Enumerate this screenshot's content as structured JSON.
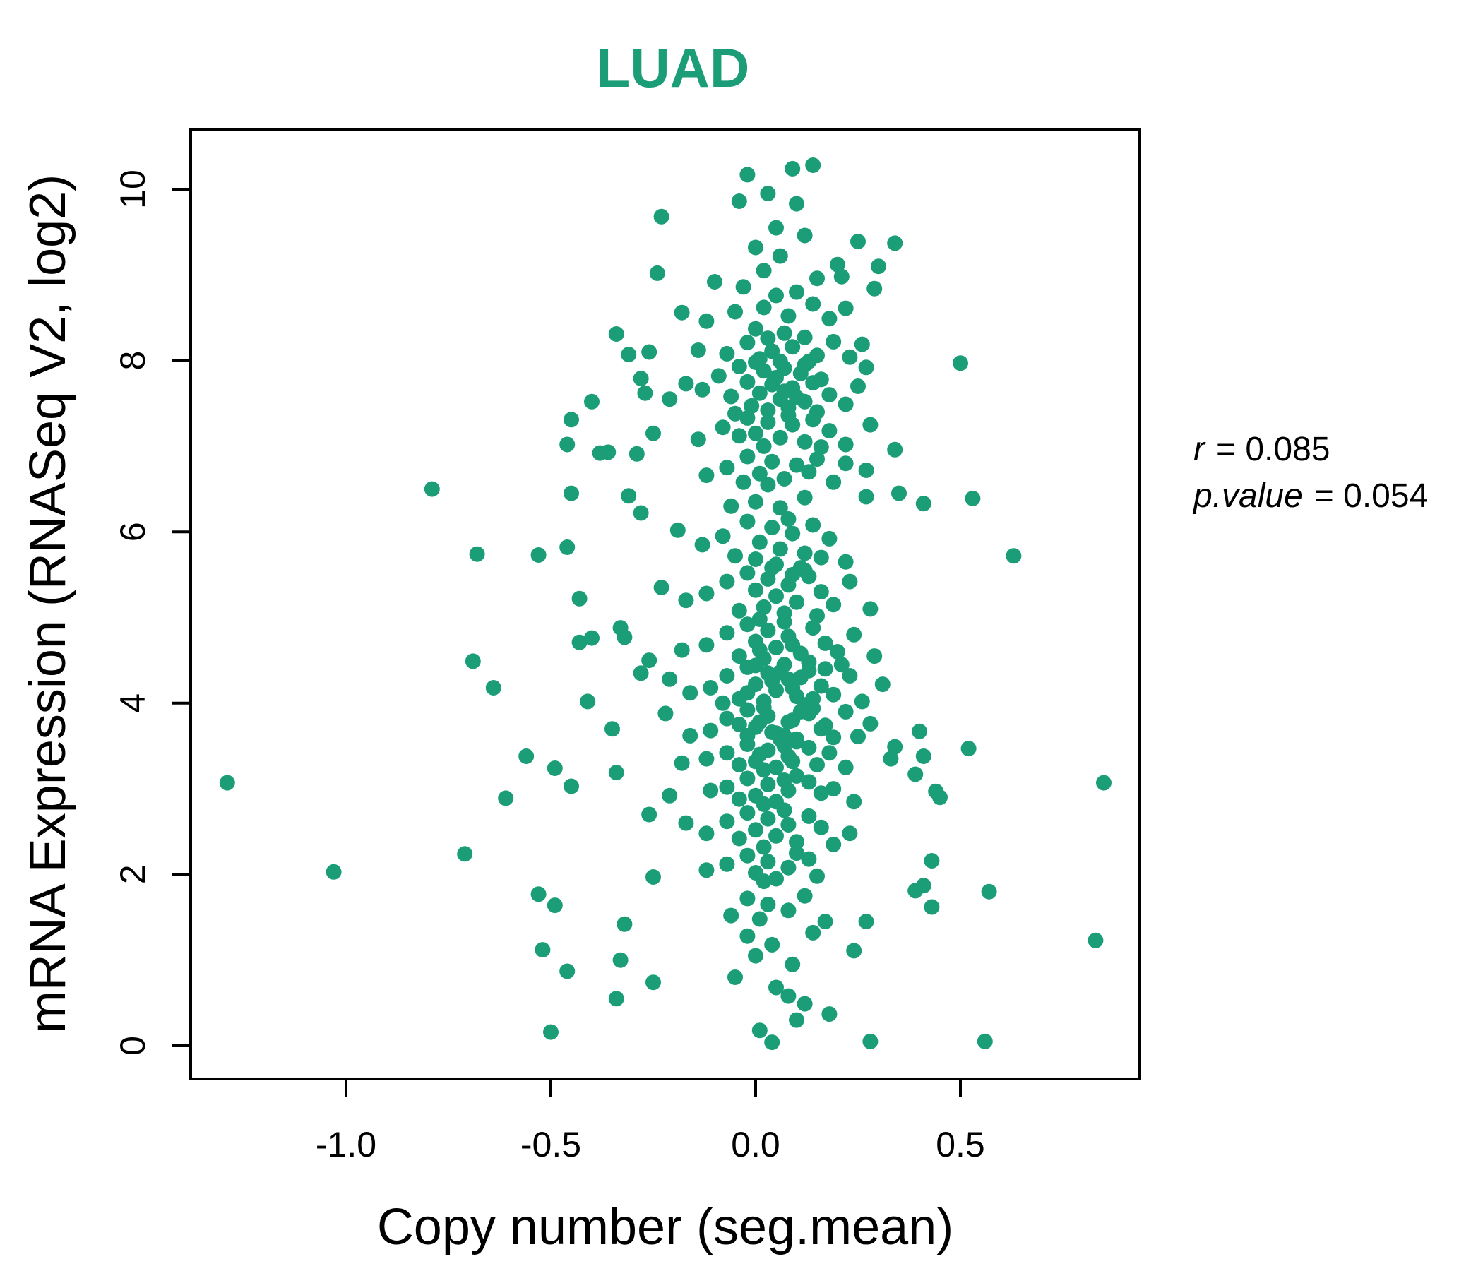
{
  "colors": {
    "accent": "#1B9E77",
    "point": "#1B9E77",
    "axis": "#000000"
  },
  "annotation": {
    "r_symbol": "r",
    "r_rest": "= 0.085",
    "p_symbol": "p.value",
    "p_rest": "= 0.054"
  },
  "chart_data": {
    "type": "scatter",
    "title": "LUAD",
    "xlabel": "Copy number (seg.mean)",
    "ylabel": "mRNA Expression (RNASeq V2, log2)",
    "x_ticks": [
      -1.0,
      -0.5,
      0.0,
      0.5
    ],
    "x_tick_labels": [
      "-1.0",
      "-0.5",
      "0.0",
      "0.5"
    ],
    "y_ticks": [
      0,
      2,
      4,
      6,
      8,
      10
    ],
    "y_tick_labels": [
      "0",
      "2",
      "4",
      "6",
      "8",
      "10"
    ],
    "xlim": [
      -1.38,
      0.94
    ],
    "ylim": [
      -0.39,
      10.7
    ],
    "grid": false,
    "legend": "none",
    "stats": {
      "r": 0.085,
      "p_value": 0.054
    },
    "points": [
      [
        -0.02,
        10.17
      ],
      [
        0.09,
        10.24
      ],
      [
        0.14,
        10.28
      ],
      [
        0.03,
        9.95
      ],
      [
        -0.04,
        9.86
      ],
      [
        0.1,
        9.83
      ],
      [
        -0.23,
        9.68
      ],
      [
        0.05,
        9.55
      ],
      [
        0.12,
        9.46
      ],
      [
        0.0,
        9.32
      ],
      [
        0.25,
        9.39
      ],
      [
        0.34,
        9.37
      ],
      [
        0.06,
        9.22
      ],
      [
        0.2,
        9.12
      ],
      [
        -0.24,
        9.02
      ],
      [
        0.3,
        9.1
      ],
      [
        0.15,
        8.96
      ],
      [
        -0.1,
        8.92
      ],
      [
        0.02,
        9.05
      ],
      [
        0.21,
        8.98
      ],
      [
        0.29,
        8.84
      ],
      [
        -0.03,
        8.86
      ],
      [
        -0.18,
        8.56
      ],
      [
        -0.05,
        8.57
      ],
      [
        0.02,
        8.62
      ],
      [
        0.08,
        8.52
      ],
      [
        0.14,
        8.66
      ],
      [
        0.18,
        8.49
      ],
      [
        0.05,
        8.76
      ],
      [
        0.1,
        8.8
      ],
      [
        -0.12,
        8.46
      ],
      [
        0.0,
        8.37
      ],
      [
        0.07,
        8.32
      ],
      [
        0.12,
        8.27
      ],
      [
        0.22,
        8.61
      ],
      [
        -0.34,
        8.31
      ],
      [
        -0.31,
        8.07
      ],
      [
        -0.26,
        8.1
      ],
      [
        0.26,
        8.19
      ],
      [
        -0.02,
        8.21
      ],
      [
        0.04,
        8.11
      ],
      [
        0.09,
        8.16
      ],
      [
        0.15,
        8.06
      ],
      [
        0.01,
        8.02
      ],
      [
        -0.07,
        8.08
      ],
      [
        0.06,
        7.99
      ],
      [
        0.12,
        7.95
      ],
      [
        0.19,
        8.22
      ],
      [
        -0.14,
        8.12
      ],
      [
        0.03,
        8.26
      ],
      [
        0.5,
        7.97
      ],
      [
        0.23,
        8.04
      ],
      [
        -0.4,
        7.52
      ],
      [
        -0.28,
        7.79
      ],
      [
        -0.27,
        7.62
      ],
      [
        0.27,
        7.92
      ],
      [
        -0.04,
        7.93
      ],
      [
        0.02,
        7.88
      ],
      [
        0.07,
        7.91
      ],
      [
        0.11,
        7.85
      ],
      [
        0.16,
        7.78
      ],
      [
        -0.09,
        7.82
      ],
      [
        -0.02,
        7.75
      ],
      [
        0.04,
        7.72
      ],
      [
        0.09,
        7.68
      ],
      [
        0.14,
        7.74
      ],
      [
        0.01,
        7.62
      ],
      [
        -0.06,
        7.58
      ],
      [
        0.06,
        7.55
      ],
      [
        0.12,
        7.52
      ],
      [
        0.18,
        7.6
      ],
      [
        0.22,
        7.49
      ],
      [
        -0.13,
        7.66
      ],
      [
        -0.01,
        7.47
      ],
      [
        0.03,
        7.42
      ],
      [
        0.08,
        7.45
      ],
      [
        0.15,
        7.4
      ],
      [
        -0.05,
        7.38
      ],
      [
        0.1,
        7.57
      ],
      [
        0.05,
        7.8
      ],
      [
        0.0,
        7.98
      ],
      [
        0.13,
        7.99
      ],
      [
        -0.17,
        7.73
      ],
      [
        0.25,
        7.7
      ],
      [
        -0.21,
        7.55
      ],
      [
        0.07,
        7.64
      ],
      [
        -0.45,
        7.31
      ],
      [
        -0.46,
        7.02
      ],
      [
        -0.02,
        7.33
      ],
      [
        0.03,
        7.28
      ],
      [
        0.09,
        7.25
      ],
      [
        0.14,
        7.31
      ],
      [
        -0.08,
        7.22
      ],
      [
        0.0,
        7.15
      ],
      [
        0.06,
        7.1
      ],
      [
        0.12,
        7.05
      ],
      [
        0.18,
        7.18
      ],
      [
        -0.14,
        7.08
      ],
      [
        0.22,
        7.02
      ],
      [
        0.02,
        7.0
      ],
      [
        -0.04,
        7.12
      ],
      [
        0.08,
        7.36
      ],
      [
        0.16,
        6.99
      ],
      [
        -0.25,
        7.15
      ],
      [
        0.28,
        7.25
      ],
      [
        -0.38,
        6.92
      ],
      [
        -0.29,
        6.91
      ],
      [
        0.34,
        6.96
      ],
      [
        -0.36,
        6.93
      ],
      [
        -0.02,
        6.88
      ],
      [
        0.04,
        6.82
      ],
      [
        0.1,
        6.78
      ],
      [
        0.15,
        6.85
      ],
      [
        -0.07,
        6.75
      ],
      [
        0.01,
        6.68
      ],
      [
        0.07,
        6.62
      ],
      [
        0.13,
        6.7
      ],
      [
        0.19,
        6.58
      ],
      [
        -0.12,
        6.66
      ],
      [
        0.27,
        6.72
      ],
      [
        0.03,
        6.55
      ],
      [
        -0.03,
        6.58
      ],
      [
        0.22,
        6.8
      ],
      [
        -0.79,
        6.5
      ],
      [
        -0.45,
        6.45
      ],
      [
        -0.31,
        6.42
      ],
      [
        -0.28,
        6.22
      ],
      [
        0.35,
        6.45
      ],
      [
        0.41,
        6.33
      ],
      [
        0.27,
        6.41
      ],
      [
        0.53,
        6.39
      ],
      [
        0.0,
        6.35
      ],
      [
        0.06,
        6.28
      ],
      [
        0.12,
        6.4
      ],
      [
        -0.06,
        6.3
      ],
      [
        -0.46,
        5.82
      ],
      [
        -0.68,
        5.74
      ],
      [
        -0.53,
        5.73
      ],
      [
        0.63,
        5.72
      ],
      [
        -0.02,
        6.12
      ],
      [
        0.04,
        6.05
      ],
      [
        0.09,
        5.98
      ],
      [
        0.14,
        6.08
      ],
      [
        -0.08,
        5.95
      ],
      [
        0.01,
        5.88
      ],
      [
        0.06,
        5.8
      ],
      [
        0.12,
        5.75
      ],
      [
        0.18,
        5.92
      ],
      [
        -0.13,
        5.85
      ],
      [
        0.0,
        5.68
      ],
      [
        0.05,
        5.62
      ],
      [
        0.11,
        5.58
      ],
      [
        -0.05,
        5.72
      ],
      [
        0.22,
        5.65
      ],
      [
        0.08,
        6.15
      ],
      [
        -0.19,
        6.02
      ],
      [
        0.16,
        5.7
      ],
      [
        -0.43,
        5.22
      ],
      [
        -0.02,
        5.52
      ],
      [
        0.03,
        5.45
      ],
      [
        0.08,
        5.38
      ],
      [
        0.13,
        5.48
      ],
      [
        -0.07,
        5.42
      ],
      [
        0.0,
        5.32
      ],
      [
        0.05,
        5.25
      ],
      [
        0.1,
        5.18
      ],
      [
        0.16,
        5.3
      ],
      [
        -0.12,
        5.28
      ],
      [
        0.02,
        5.12
      ],
      [
        0.07,
        5.05
      ],
      [
        0.12,
        5.55
      ],
      [
        -0.04,
        5.08
      ],
      [
        0.19,
        5.15
      ],
      [
        -0.17,
        5.2
      ],
      [
        0.23,
        5.42
      ],
      [
        0.28,
        5.1
      ],
      [
        0.04,
        5.58
      ],
      [
        -0.23,
        5.35
      ],
      [
        0.09,
        5.5
      ],
      [
        0.01,
        4.98
      ],
      [
        0.15,
        5.02
      ],
      [
        -0.4,
        4.76
      ],
      [
        -0.33,
        4.88
      ],
      [
        -0.43,
        4.71
      ],
      [
        -0.32,
        4.77
      ],
      [
        -0.69,
        4.49
      ],
      [
        -0.02,
        4.92
      ],
      [
        0.03,
        4.85
      ],
      [
        0.08,
        4.78
      ],
      [
        0.14,
        4.88
      ],
      [
        -0.07,
        4.82
      ],
      [
        0.0,
        4.72
      ],
      [
        0.05,
        4.65
      ],
      [
        0.11,
        4.58
      ],
      [
        0.17,
        4.7
      ],
      [
        -0.12,
        4.68
      ],
      [
        0.02,
        4.52
      ],
      [
        0.07,
        4.95
      ],
      [
        0.13,
        4.48
      ],
      [
        -0.04,
        4.55
      ],
      [
        0.2,
        4.6
      ],
      [
        -0.18,
        4.62
      ],
      [
        0.24,
        4.8
      ],
      [
        0.09,
        4.68
      ],
      [
        0.29,
        4.55
      ],
      [
        -0.26,
        4.5
      ],
      [
        0.01,
        4.62
      ],
      [
        -0.64,
        4.18
      ],
      [
        -0.41,
        4.02
      ],
      [
        -0.02,
        4.42
      ],
      [
        0.03,
        4.35
      ],
      [
        0.08,
        4.28
      ],
      [
        0.13,
        4.38
      ],
      [
        -0.07,
        4.32
      ],
      [
        0.0,
        4.22
      ],
      [
        0.05,
        4.15
      ],
      [
        0.1,
        4.08
      ],
      [
        0.16,
        4.2
      ],
      [
        -0.11,
        4.18
      ],
      [
        0.02,
        4.02
      ],
      [
        0.07,
        4.45
      ],
      [
        0.12,
        3.98
      ],
      [
        -0.04,
        4.05
      ],
      [
        0.19,
        4.1
      ],
      [
        -0.16,
        4.12
      ],
      [
        0.23,
        4.32
      ],
      [
        0.04,
        4.26
      ],
      [
        0.09,
        4.18
      ],
      [
        0.14,
        4.05
      ],
      [
        -0.02,
        4.12
      ],
      [
        0.06,
        4.36
      ],
      [
        0.0,
        4.44
      ],
      [
        0.11,
        4.3
      ],
      [
        0.21,
        4.45
      ],
      [
        -0.21,
        4.28
      ],
      [
        0.26,
        4.02
      ],
      [
        0.17,
        4.4
      ],
      [
        -0.08,
        4.0
      ],
      [
        0.31,
        4.22
      ],
      [
        -0.28,
        4.35
      ],
      [
        -0.35,
        3.7
      ],
      [
        0.4,
        3.67
      ],
      [
        0.28,
        3.76
      ],
      [
        0.25,
        3.61
      ],
      [
        -0.02,
        3.92
      ],
      [
        0.03,
        3.85
      ],
      [
        0.08,
        3.78
      ],
      [
        0.13,
        3.88
      ],
      [
        -0.07,
        3.82
      ],
      [
        0.0,
        3.72
      ],
      [
        0.05,
        3.65
      ],
      [
        0.1,
        3.58
      ],
      [
        0.16,
        3.7
      ],
      [
        -0.11,
        3.68
      ],
      [
        0.02,
        3.95
      ],
      [
        0.07,
        3.62
      ],
      [
        0.12,
        3.96
      ],
      [
        -0.04,
        3.75
      ],
      [
        0.19,
        3.6
      ],
      [
        -0.16,
        3.62
      ],
      [
        0.22,
        3.9
      ],
      [
        0.04,
        3.66
      ],
      [
        0.09,
        3.8
      ],
      [
        0.14,
        3.94
      ],
      [
        -0.02,
        3.62
      ],
      [
        0.06,
        3.58
      ],
      [
        0.01,
        3.78
      ],
      [
        0.11,
        3.9
      ],
      [
        -0.22,
        3.88
      ],
      [
        0.17,
        3.74
      ],
      [
        -0.56,
        3.38
      ],
      [
        -0.49,
        3.24
      ],
      [
        -0.34,
        3.19
      ],
      [
        0.52,
        3.47
      ],
      [
        0.41,
        3.38
      ],
      [
        0.39,
        3.17
      ],
      [
        0.34,
        3.49
      ],
      [
        0.33,
        3.35
      ],
      [
        -0.02,
        3.52
      ],
      [
        0.03,
        3.45
      ],
      [
        0.08,
        3.38
      ],
      [
        0.13,
        3.48
      ],
      [
        -0.07,
        3.42
      ],
      [
        0.0,
        3.32
      ],
      [
        0.05,
        3.25
      ],
      [
        0.1,
        3.55
      ],
      [
        0.15,
        3.28
      ],
      [
        -0.12,
        3.35
      ],
      [
        0.02,
        3.22
      ],
      [
        0.07,
        3.5
      ],
      [
        -0.04,
        3.28
      ],
      [
        0.18,
        3.42
      ],
      [
        -0.18,
        3.3
      ],
      [
        0.22,
        3.25
      ],
      [
        0.09,
        3.32
      ],
      [
        0.01,
        3.4
      ],
      [
        -1.29,
        3.07
      ],
      [
        0.85,
        3.07
      ],
      [
        -0.61,
        2.89
      ],
      [
        -0.45,
        3.03
      ],
      [
        0.44,
        2.97
      ],
      [
        0.45,
        2.9
      ],
      [
        -0.02,
        3.12
      ],
      [
        0.03,
        3.05
      ],
      [
        0.08,
        2.98
      ],
      [
        0.13,
        3.08
      ],
      [
        -0.07,
        3.02
      ],
      [
        0.0,
        2.92
      ],
      [
        0.05,
        2.85
      ],
      [
        0.1,
        3.15
      ],
      [
        0.16,
        2.95
      ],
      [
        -0.11,
        2.98
      ],
      [
        0.02,
        2.82
      ],
      [
        0.07,
        3.1
      ],
      [
        -0.04,
        2.88
      ],
      [
        0.19,
        3.0
      ],
      [
        0.24,
        2.85
      ],
      [
        -0.21,
        2.92
      ],
      [
        -0.71,
        2.24
      ],
      [
        -0.26,
        2.7
      ],
      [
        0.23,
        2.48
      ],
      [
        -0.02,
        2.72
      ],
      [
        0.03,
        2.65
      ],
      [
        0.08,
        2.58
      ],
      [
        0.13,
        2.68
      ],
      [
        -0.07,
        2.62
      ],
      [
        0.0,
        2.52
      ],
      [
        0.05,
        2.45
      ],
      [
        0.1,
        2.38
      ],
      [
        0.16,
        2.55
      ],
      [
        -0.12,
        2.48
      ],
      [
        0.02,
        2.32
      ],
      [
        0.07,
        2.75
      ],
      [
        -0.04,
        2.42
      ],
      [
        0.19,
        2.35
      ],
      [
        -0.17,
        2.6
      ],
      [
        -1.03,
        2.03
      ],
      [
        -0.25,
        1.97
      ],
      [
        0.43,
        2.16
      ],
      [
        -0.02,
        2.22
      ],
      [
        0.03,
        2.15
      ],
      [
        0.08,
        2.08
      ],
      [
        0.13,
        2.18
      ],
      [
        -0.07,
        2.12
      ],
      [
        0.0,
        2.02
      ],
      [
        0.05,
        1.95
      ],
      [
        0.1,
        2.25
      ],
      [
        0.15,
        1.98
      ],
      [
        -0.12,
        2.05
      ],
      [
        0.02,
        1.92
      ],
      [
        -0.53,
        1.77
      ],
      [
        -0.49,
        1.64
      ],
      [
        0.57,
        1.8
      ],
      [
        0.39,
        1.81
      ],
      [
        0.41,
        1.87
      ],
      [
        0.43,
        1.62
      ],
      [
        0.27,
        1.45
      ],
      [
        0.17,
        1.45
      ],
      [
        -0.02,
        1.72
      ],
      [
        0.03,
        1.65
      ],
      [
        0.08,
        1.58
      ],
      [
        -0.06,
        1.52
      ],
      [
        0.12,
        1.75
      ],
      [
        0.01,
        1.48
      ],
      [
        -0.52,
        1.12
      ],
      [
        -0.33,
        1.0
      ],
      [
        -0.32,
        1.42
      ],
      [
        0.83,
        1.23
      ],
      [
        0.24,
        1.11
      ],
      [
        -0.02,
        1.28
      ],
      [
        0.04,
        1.18
      ],
      [
        0.09,
        0.95
      ],
      [
        0.0,
        1.05
      ],
      [
        0.14,
        1.32
      ],
      [
        -0.46,
        0.87
      ],
      [
        -0.25,
        0.74
      ],
      [
        -0.34,
        0.55
      ],
      [
        0.12,
        0.49
      ],
      [
        0.18,
        0.37
      ],
      [
        0.05,
        0.68
      ],
      [
        -0.05,
        0.8
      ],
      [
        0.08,
        0.58
      ],
      [
        -0.5,
        0.16
      ],
      [
        0.04,
        0.04
      ],
      [
        0.28,
        0.05
      ],
      [
        0.56,
        0.05
      ],
      [
        0.1,
        0.3
      ],
      [
        0.01,
        0.18
      ]
    ]
  }
}
